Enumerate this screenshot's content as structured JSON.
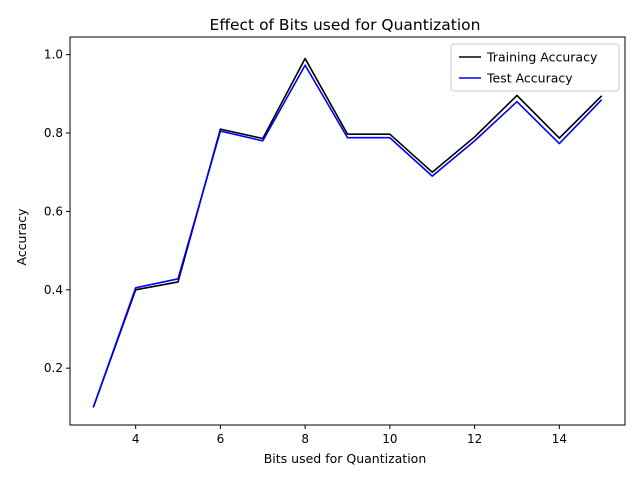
{
  "chart_data": {
    "type": "line",
    "title": "Effect of Bits used for Quantization",
    "xlabel": "Bits used for Quantization",
    "ylabel": "Accuracy",
    "xlim": [
      2.45,
      15.55
    ],
    "ylim": [
      0.055,
      1.045
    ],
    "xticks": [
      4,
      6,
      8,
      10,
      12,
      14
    ],
    "xtick_labels": [
      "4",
      "6",
      "8",
      "10",
      "12",
      "14"
    ],
    "yticks": [
      0.2,
      0.4,
      0.6,
      0.8,
      1.0
    ],
    "ytick_labels": [
      "0.2",
      "0.4",
      "0.6",
      "0.8",
      "1.0"
    ],
    "x": [
      3,
      4,
      5,
      6,
      7,
      8,
      9,
      10,
      11,
      12,
      13,
      14,
      15
    ],
    "series": [
      {
        "name": "Training Accuracy",
        "color": "#000000",
        "values": [
          0.1,
          0.4,
          0.42,
          0.81,
          0.786,
          0.99,
          0.797,
          0.797,
          0.7,
          0.79,
          0.896,
          0.787,
          0.895
        ]
      },
      {
        "name": "Test Accuracy",
        "color": "#0000ff",
        "values": [
          0.1,
          0.405,
          0.428,
          0.805,
          0.78,
          0.973,
          0.788,
          0.788,
          0.69,
          0.78,
          0.88,
          0.773,
          0.885
        ]
      }
    ],
    "legend_position": "top-right",
    "grid": false
  }
}
